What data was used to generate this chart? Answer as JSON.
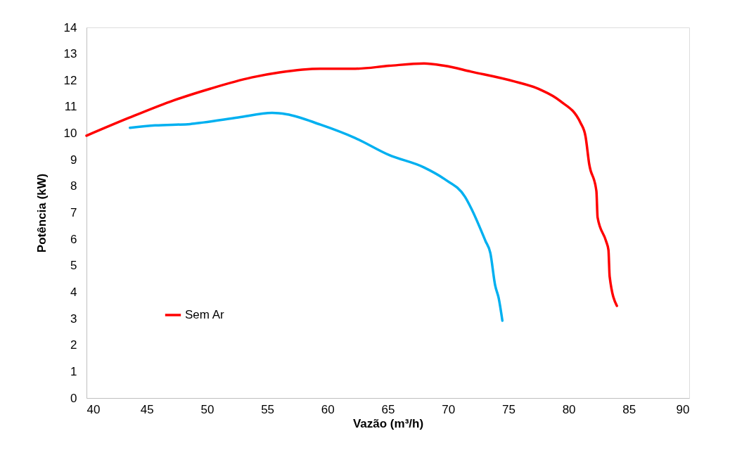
{
  "chart_data": {
    "type": "line",
    "xlabel": "Vazão (m³/h)",
    "ylabel": "Potência  (kW)",
    "xlim": [
      40,
      90
    ],
    "xticks": [
      40,
      45,
      50,
      55,
      60,
      65,
      70,
      75,
      80,
      85,
      90
    ],
    "ylim": [
      0,
      14
    ],
    "yticks": [
      0,
      1,
      2,
      3,
      4,
      5,
      6,
      7,
      8,
      9,
      10,
      11,
      12,
      13,
      14
    ],
    "grid": false,
    "legend": "bottom left",
    "marker": "none",
    "line_style": "solid",
    "series": [
      {
        "name": "Sem Ar",
        "color": "#ff0000",
        "x": [
          40,
          43.5,
          46.9,
          50.3,
          53.7,
          56.0,
          59.4,
          62.3,
          65.1,
          68.0,
          69.7,
          71.9,
          75.4,
          77.6,
          79.3,
          81.0,
          81.4,
          81.7,
          82.3,
          82.4,
          83.1,
          83.3,
          83.4,
          84.0
        ],
        "values": [
          9.91,
          10.58,
          11.19,
          11.69,
          12.11,
          12.3,
          12.44,
          12.44,
          12.55,
          12.64,
          12.55,
          12.33,
          11.97,
          11.66,
          11.22,
          10.38,
          9.88,
          8.85,
          7.82,
          6.82,
          5.93,
          5.59,
          4.59,
          3.48
        ]
      },
      {
        "color": "#00b0f0",
        "x": [
          43.6,
          45.7,
          48.6,
          49.7,
          52.6,
          55.4,
          56.6,
          59.4,
          62.3,
          65.1,
          68.0,
          69.7,
          71.4,
          71.9,
          73.1,
          73.5,
          73.9,
          74.2,
          74.5
        ],
        "values": [
          10.21,
          10.3,
          10.35,
          10.41,
          10.6,
          10.77,
          10.72,
          10.33,
          9.82,
          9.18,
          8.71,
          8.27,
          7.6,
          7.18,
          5.93,
          5.48,
          4.26,
          3.76,
          2.92
        ]
      }
    ]
  }
}
